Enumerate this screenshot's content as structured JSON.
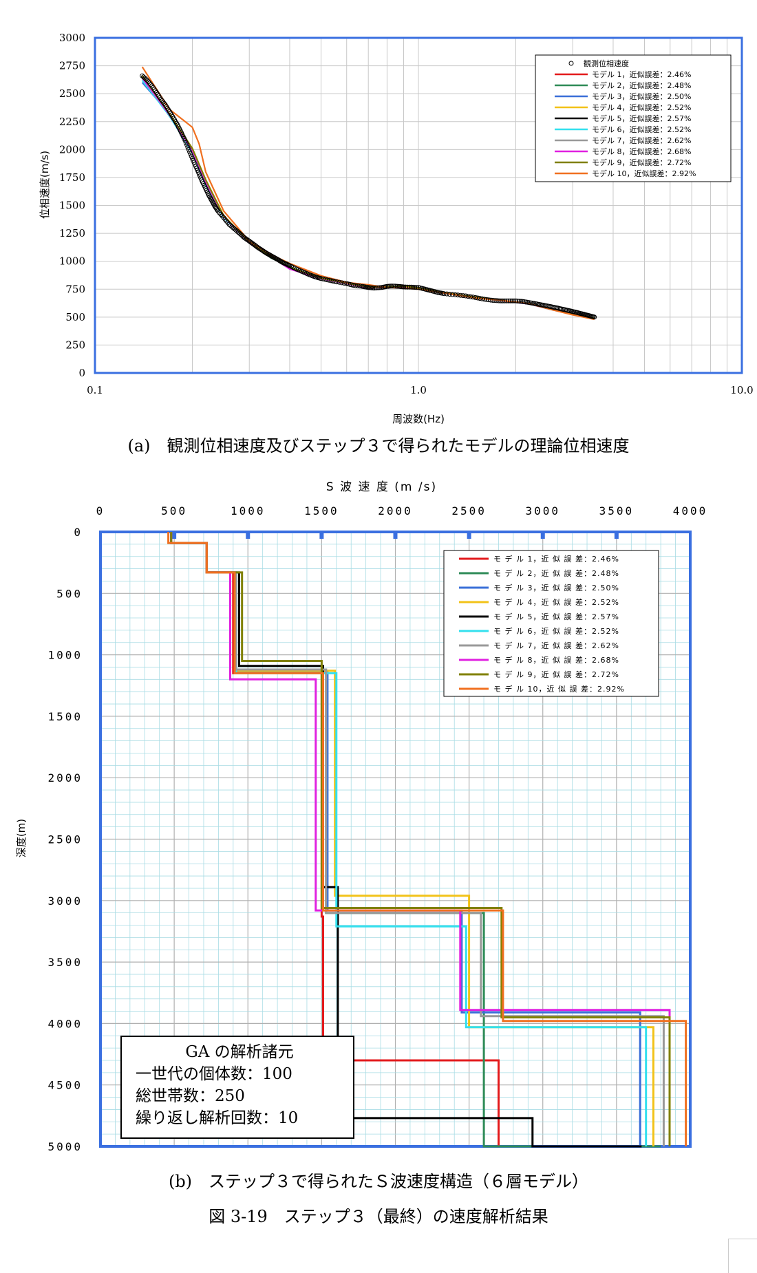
{
  "chart_data": [
    {
      "type": "scatter",
      "xlabel": "周波数(Hz)",
      "ylabel": "位相速度(m/s)",
      "x_scale": "log",
      "xlim": [
        0.1,
        10.0
      ],
      "ylim": [
        0,
        3000
      ],
      "x_ticks": [
        "0.1",
        "1.0",
        "10.0"
      ],
      "y_ticks": [
        "0",
        "250",
        "500",
        "750",
        "1000",
        "1250",
        "1500",
        "1750",
        "2000",
        "2250",
        "2500",
        "2750",
        "3000"
      ],
      "grid": true,
      "legend_position": "top-right",
      "observed": {
        "name": "観測位相速度",
        "x": [
          0.14,
          0.145,
          0.15,
          0.155,
          0.16,
          0.165,
          0.17,
          0.175,
          0.18,
          0.185,
          0.19,
          0.195,
          0.2,
          0.205,
          0.21,
          0.215,
          0.22,
          0.225,
          0.23,
          0.235,
          0.24,
          0.25,
          0.26,
          0.27,
          0.28,
          0.29,
          0.3,
          0.31,
          0.32,
          0.33,
          0.34,
          0.35,
          0.36,
          0.37,
          0.38,
          0.39,
          0.4,
          0.42,
          0.44,
          0.46,
          0.48,
          0.5,
          0.53,
          0.56,
          0.6,
          0.63,
          0.67,
          0.7,
          0.73,
          0.77,
          0.8,
          0.83,
          0.87,
          0.9,
          0.95,
          1.0,
          1.05,
          1.1,
          1.15,
          1.2,
          1.3,
          1.4,
          1.5,
          1.6,
          1.7,
          1.8,
          1.9,
          2.0,
          2.1,
          2.2,
          2.3,
          2.4,
          2.5,
          2.6,
          2.7,
          2.8,
          2.9,
          3.0,
          3.1,
          3.2,
          3.3,
          3.4,
          3.5
        ],
        "y": [
          2660,
          2620,
          2570,
          2510,
          2450,
          2400,
          2340,
          2280,
          2220,
          2150,
          2080,
          2000,
          1920,
          1850,
          1780,
          1710,
          1650,
          1590,
          1540,
          1490,
          1450,
          1390,
          1330,
          1290,
          1250,
          1210,
          1180,
          1150,
          1120,
          1095,
          1070,
          1050,
          1030,
          1010,
          990,
          975,
          960,
          930,
          905,
          880,
          860,
          845,
          830,
          815,
          800,
          785,
          775,
          765,
          760,
          765,
          775,
          778,
          775,
          770,
          768,
          765,
          750,
          735,
          720,
          710,
          700,
          690,
          675,
          660,
          650,
          645,
          645,
          645,
          640,
          630,
          620,
          610,
          600,
          590,
          580,
          570,
          560,
          550,
          540,
          530,
          520,
          510,
          500
        ]
      },
      "series": [
        {
          "name": "モデル 1，近似誤差：2.46%",
          "color": "#e31a1c",
          "x": [
            0.14,
            0.17,
            0.2,
            0.22,
            0.25,
            0.3,
            0.35,
            0.4,
            0.5,
            0.6,
            0.7,
            0.8,
            0.9,
            1.0,
            1.2,
            1.5,
            1.8,
            2.2,
            2.6,
            3.0,
            3.5
          ],
          "y": [
            2650,
            2300,
            2000,
            1720,
            1400,
            1170,
            1040,
            940,
            850,
            800,
            760,
            770,
            780,
            760,
            720,
            680,
            650,
            620,
            570,
            530,
            490
          ]
        },
        {
          "name": "モデル 2，近似誤差：2.48%",
          "color": "#2e8b57",
          "x": [
            0.14,
            0.17,
            0.2,
            0.22,
            0.25,
            0.3,
            0.35,
            0.4,
            0.5,
            0.6,
            0.7,
            0.8,
            0.9,
            1.0,
            1.2,
            1.5,
            1.8,
            2.2,
            2.6,
            3.0,
            3.5
          ],
          "y": [
            2640,
            2310,
            1990,
            1700,
            1400,
            1180,
            1030,
            950,
            845,
            800,
            765,
            770,
            775,
            760,
            715,
            675,
            650,
            620,
            565,
            530,
            488
          ]
        },
        {
          "name": "モデル 3，近似誤差：2.50%",
          "color": "#3a6fd8",
          "x": [
            0.14,
            0.17,
            0.2,
            0.22,
            0.25,
            0.3,
            0.35,
            0.4,
            0.5,
            0.6,
            0.7,
            0.8,
            0.9,
            1.0,
            1.2,
            1.5,
            1.8,
            2.2,
            2.6,
            3.0,
            3.5
          ],
          "y": [
            2600,
            2320,
            1980,
            1690,
            1390,
            1170,
            1040,
            945,
            850,
            805,
            770,
            770,
            775,
            755,
            715,
            675,
            648,
            618,
            565,
            528,
            485
          ]
        },
        {
          "name": "モデル 4，近似誤差：2.52%",
          "color": "#f2c218",
          "x": [
            0.14,
            0.17,
            0.2,
            0.22,
            0.25,
            0.3,
            0.35,
            0.4,
            0.5,
            0.6,
            0.7,
            0.8,
            0.9,
            1.0,
            1.2,
            1.5,
            1.8,
            2.2,
            2.6,
            3.0,
            3.5
          ],
          "y": [
            2660,
            2320,
            2010,
            1730,
            1410,
            1170,
            1035,
            940,
            848,
            802,
            768,
            770,
            778,
            760,
            718,
            678,
            650,
            620,
            568,
            530,
            490
          ]
        },
        {
          "name": "モデル 5，近似誤差：2.57%",
          "color": "#000000",
          "x": [
            0.14,
            0.17,
            0.2,
            0.22,
            0.25,
            0.3,
            0.35,
            0.4,
            0.5,
            0.6,
            0.7,
            0.8,
            0.9,
            1.0,
            1.2,
            1.5,
            1.8,
            2.2,
            2.6,
            3.0,
            3.5
          ],
          "y": [
            2650,
            2300,
            2000,
            1720,
            1400,
            1170,
            1040,
            940,
            850,
            800,
            760,
            765,
            778,
            765,
            720,
            680,
            650,
            620,
            570,
            532,
            490
          ]
        },
        {
          "name": "モデル 6，近似誤差：2.52%",
          "color": "#33e0ee",
          "x": [
            0.14,
            0.17,
            0.2,
            0.22,
            0.25,
            0.3,
            0.35,
            0.4,
            0.5,
            0.6,
            0.7,
            0.8,
            0.9,
            1.0,
            1.2,
            1.5,
            1.8,
            2.2,
            2.6,
            3.0,
            3.5
          ],
          "y": [
            2620,
            2300,
            1970,
            1680,
            1390,
            1175,
            1040,
            945,
            850,
            805,
            770,
            770,
            775,
            758,
            716,
            676,
            648,
            618,
            566,
            528,
            486
          ]
        },
        {
          "name": "モデル 7，近似誤差：2.62%",
          "color": "#999999",
          "x": [
            0.14,
            0.17,
            0.2,
            0.22,
            0.25,
            0.3,
            0.35,
            0.4,
            0.5,
            0.6,
            0.7,
            0.8,
            0.9,
            1.0,
            1.2,
            1.5,
            1.8,
            2.2,
            2.6,
            3.0,
            3.5
          ],
          "y": [
            2650,
            2310,
            2000,
            1720,
            1400,
            1172,
            1038,
            942,
            848,
            802,
            766,
            768,
            776,
            760,
            718,
            678,
            650,
            620,
            568,
            530,
            488
          ]
        },
        {
          "name": "モデル 8，近似誤差：2.68%",
          "color": "#e020e0",
          "x": [
            0.14,
            0.17,
            0.2,
            0.22,
            0.25,
            0.3,
            0.35,
            0.4,
            0.5,
            0.6,
            0.7,
            0.8,
            0.9,
            1.0,
            1.2,
            1.5,
            1.8,
            2.2,
            2.6,
            3.0,
            3.5
          ],
          "y": [
            2640,
            2310,
            1990,
            1710,
            1400,
            1170,
            1040,
            930,
            845,
            800,
            765,
            768,
            775,
            758,
            716,
            676,
            648,
            618,
            566,
            528,
            486
          ]
        },
        {
          "name": "モデル 9，近似誤差：2.72%",
          "color": "#808000",
          "x": [
            0.14,
            0.17,
            0.2,
            0.22,
            0.25,
            0.3,
            0.35,
            0.4,
            0.5,
            0.6,
            0.7,
            0.8,
            0.9,
            1.0,
            1.2,
            1.5,
            1.8,
            2.2,
            2.6,
            3.0,
            3.5
          ],
          "y": [
            2660,
            2320,
            2010,
            1730,
            1405,
            1175,
            1040,
            945,
            850,
            805,
            770,
            772,
            778,
            760,
            718,
            678,
            650,
            620,
            568,
            530,
            490
          ]
        },
        {
          "name": "モデル 10，近似誤差：2.92%",
          "color": "#f07020",
          "x": [
            0.14,
            0.17,
            0.2,
            0.21,
            0.22,
            0.25,
            0.3,
            0.35,
            0.4,
            0.5,
            0.6,
            0.7,
            0.8,
            0.9,
            1.0,
            1.2,
            1.5,
            1.8,
            2.2,
            2.6,
            3.0,
            3.5
          ],
          "y": [
            2740,
            2360,
            2200,
            2050,
            1800,
            1450,
            1180,
            1060,
            980,
            870,
            810,
            790,
            765,
            760,
            750,
            715,
            670,
            650,
            620,
            565,
            520,
            480
          ]
        }
      ]
    },
    {
      "type": "line",
      "title": "S 波 速 度 (m /s)",
      "ylabel": "深度(m)",
      "xlim": [
        0,
        4000
      ],
      "ylim": [
        5000,
        0
      ],
      "x_ticks": [
        "0",
        "500",
        "1000",
        "1500",
        "2000",
        "2500",
        "3000",
        "3500",
        "4000"
      ],
      "y_ticks": [
        "0",
        "500",
        "1000",
        "1500",
        "2000",
        "2500",
        "3000",
        "3500",
        "4000",
        "4500",
        "5000"
      ],
      "grid": true,
      "legend_position": "top-right",
      "series": [
        {
          "name": "モデル 1，近似誤差：2.46%",
          "color": "#e31a1c",
          "depth": [
            0,
            90,
            330,
            1150,
            3130,
            4300,
            5000
          ],
          "vs": [
            480,
            720,
            900,
            1500,
            1510,
            2700,
            3800
          ]
        },
        {
          "name": "モデル 2，近似誤差：2.48%",
          "color": "#2e8b57",
          "depth": [
            0,
            90,
            330,
            1130,
            3100,
            4560,
            5000
          ],
          "vs": [
            480,
            720,
            920,
            1530,
            2600,
            2600,
            3800
          ]
        },
        {
          "name": "モデル 3，近似誤差：2.50%",
          "color": "#3a6fd8",
          "depth": [
            0,
            90,
            330,
            1140,
            3080,
            3910,
            5000
          ],
          "vs": [
            480,
            720,
            910,
            1540,
            2450,
            3660,
            3660
          ]
        },
        {
          "name": "モデル 4，近似誤差：2.52%",
          "color": "#f2c218",
          "depth": [
            0,
            90,
            330,
            1130,
            2960,
            4030,
            5000
          ],
          "vs": [
            480,
            720,
            910,
            1590,
            2500,
            3750,
            3750
          ]
        },
        {
          "name": "モデル 5，近似誤差：2.57%",
          "color": "#000000",
          "depth": [
            0,
            90,
            330,
            1090,
            2890,
            4770,
            5000
          ],
          "vs": [
            480,
            720,
            940,
            1510,
            1610,
            2930,
            3670
          ]
        },
        {
          "name": "モデル 6，近似誤差：2.52%",
          "color": "#33e0ee",
          "depth": [
            0,
            90,
            330,
            1150,
            3210,
            4030,
            5000
          ],
          "vs": [
            480,
            720,
            920,
            1600,
            2480,
            3700,
            3700
          ]
        },
        {
          "name": "モデル 7，近似誤差：2.62%",
          "color": "#999999",
          "depth": [
            0,
            90,
            330,
            1120,
            3100,
            3940,
            5000
          ],
          "vs": [
            480,
            720,
            920,
            1530,
            2580,
            3820,
            3820
          ]
        },
        {
          "name": "モデル 8，近似誤差：2.68%",
          "color": "#e020e0",
          "depth": [
            0,
            90,
            330,
            1200,
            3080,
            3890,
            5000
          ],
          "vs": [
            480,
            720,
            880,
            1460,
            2440,
            3860,
            3860
          ]
        },
        {
          "name": "モデル 9，近似誤差：2.72%",
          "color": "#808000",
          "depth": [
            0,
            90,
            330,
            1050,
            3060,
            3950,
            5000
          ],
          "vs": [
            480,
            720,
            960,
            1500,
            2720,
            3860,
            3860
          ]
        },
        {
          "name": "モデル 10，近似誤差：2.92%",
          "color": "#f07020",
          "depth": [
            0,
            90,
            330,
            1150,
            3080,
            3980,
            5000
          ],
          "vs": [
            460,
            720,
            910,
            1510,
            2730,
            3970,
            3970
          ]
        }
      ]
    }
  ],
  "legend_a": {
    "observed": "観測位相速度",
    "items": [
      "モデル 1，近似誤差：2.46%",
      "モデル 2，近似誤差：2.48%",
      "モデル 3，近似誤差：2.50%",
      "モデル 4，近似誤差：2.52%",
      "モデル 5，近似誤差：2.57%",
      "モデル 6，近似誤差：2.52%",
      "モデル 7，近似誤差：2.62%",
      "モデル 8，近似誤差：2.68%",
      "モデル 9，近似誤差：2.72%",
      "モデル 10，近似誤差：2.92%"
    ]
  },
  "legend_b": {
    "items": [
      "モ デ ル  1，近 似 誤 差：2.46%",
      "モ デ ル  2，近 似 誤 差：2.48%",
      "モ デ ル  3，近 似 誤 差：2.50%",
      "モ デ ル  4，近 似 誤 差：2.52%",
      "モ デ ル  5，近 似 誤 差：2.57%",
      "モ デ ル  6，近 似 誤 差：2.52%",
      "モ デ ル  7，近 似 誤 差：2.62%",
      "モ デ ル  8，近 似 誤 差：2.68%",
      "モ デ ル  9，近 似 誤 差：2.72%",
      "モ デ ル  10，近 似 誤 差：2.92%"
    ]
  },
  "captions": {
    "a": "(a)　観測位相速度及びステップ３で得られたモデルの理論位相速度",
    "b": "(b)　ステップ３で得られたＳ波速度構造（６層モデル）",
    "figure": "図 3-19　ステップ３（最終）の速度解析結果"
  },
  "ga_box": {
    "title": "GA の解析諸元",
    "line1": "一世代の個体数：100",
    "line2": "総世帯数：250",
    "line3": "繰り返し解析回数：10"
  },
  "colors": {
    "axis_frame": "#3a6fe0",
    "grid_a": "#c8c8c8",
    "grid_b": "#a8dce4"
  }
}
